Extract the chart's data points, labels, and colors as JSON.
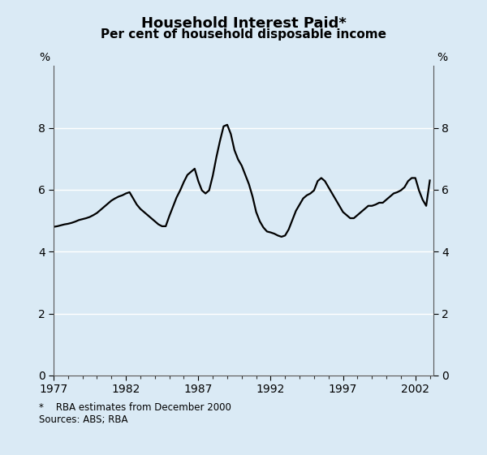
{
  "title": "Household Interest Paid*",
  "subtitle": "Per cent of household disposable income",
  "footnote": "*    RBA estimates from December 2000",
  "source": "Sources: ABS; RBA",
  "background_color": "#daeaf5",
  "line_color": "#000000",
  "line_width": 1.6,
  "ylim": [
    0,
    10
  ],
  "yticks": [
    0,
    2,
    4,
    6,
    8
  ],
  "xlim": [
    1977,
    2003.25
  ],
  "xticks": [
    1977,
    1982,
    1987,
    1992,
    1997,
    2002
  ],
  "data": {
    "years": [
      1977.0,
      1977.25,
      1977.5,
      1977.75,
      1978.0,
      1978.25,
      1978.5,
      1978.75,
      1979.0,
      1979.25,
      1979.5,
      1979.75,
      1980.0,
      1980.25,
      1980.5,
      1980.75,
      1981.0,
      1981.25,
      1981.5,
      1981.75,
      1982.0,
      1982.25,
      1982.5,
      1982.75,
      1983.0,
      1983.25,
      1983.5,
      1983.75,
      1984.0,
      1984.25,
      1984.5,
      1984.75,
      1985.0,
      1985.25,
      1985.5,
      1985.75,
      1986.0,
      1986.25,
      1986.5,
      1986.75,
      1987.0,
      1987.25,
      1987.5,
      1987.75,
      1988.0,
      1988.25,
      1988.5,
      1988.75,
      1989.0,
      1989.25,
      1989.5,
      1989.75,
      1990.0,
      1990.25,
      1990.5,
      1990.75,
      1991.0,
      1991.25,
      1991.5,
      1991.75,
      1992.0,
      1992.25,
      1992.5,
      1992.75,
      1993.0,
      1993.25,
      1993.5,
      1993.75,
      1994.0,
      1994.25,
      1994.5,
      1994.75,
      1995.0,
      1995.25,
      1995.5,
      1995.75,
      1996.0,
      1996.25,
      1996.5,
      1996.75,
      1997.0,
      1997.25,
      1997.5,
      1997.75,
      1998.0,
      1998.25,
      1998.5,
      1998.75,
      1999.0,
      1999.25,
      1999.5,
      1999.75,
      2000.0,
      2000.25,
      2000.5,
      2000.75,
      2001.0,
      2001.25,
      2001.5,
      2001.75,
      2002.0,
      2002.25,
      2002.5,
      2002.75,
      2003.0
    ],
    "values": [
      4.8,
      4.82,
      4.85,
      4.88,
      4.9,
      4.93,
      4.97,
      5.02,
      5.05,
      5.08,
      5.12,
      5.18,
      5.25,
      5.35,
      5.45,
      5.55,
      5.65,
      5.72,
      5.78,
      5.82,
      5.88,
      5.92,
      5.72,
      5.52,
      5.38,
      5.28,
      5.18,
      5.08,
      4.98,
      4.88,
      4.82,
      4.82,
      5.15,
      5.45,
      5.75,
      5.98,
      6.25,
      6.48,
      6.58,
      6.68,
      6.28,
      5.98,
      5.88,
      5.98,
      6.45,
      7.05,
      7.58,
      8.05,
      8.1,
      7.8,
      7.28,
      6.98,
      6.78,
      6.48,
      6.18,
      5.78,
      5.28,
      4.98,
      4.78,
      4.65,
      4.62,
      4.58,
      4.52,
      4.48,
      4.52,
      4.72,
      5.02,
      5.32,
      5.52,
      5.72,
      5.82,
      5.88,
      5.98,
      6.28,
      6.38,
      6.28,
      6.08,
      5.88,
      5.68,
      5.48,
      5.28,
      5.18,
      5.08,
      5.08,
      5.18,
      5.28,
      5.38,
      5.48,
      5.48,
      5.52,
      5.58,
      5.58,
      5.68,
      5.78,
      5.88,
      5.92,
      5.98,
      6.08,
      6.28,
      6.38,
      6.38,
      5.98,
      5.68,
      5.48,
      6.3
    ]
  }
}
